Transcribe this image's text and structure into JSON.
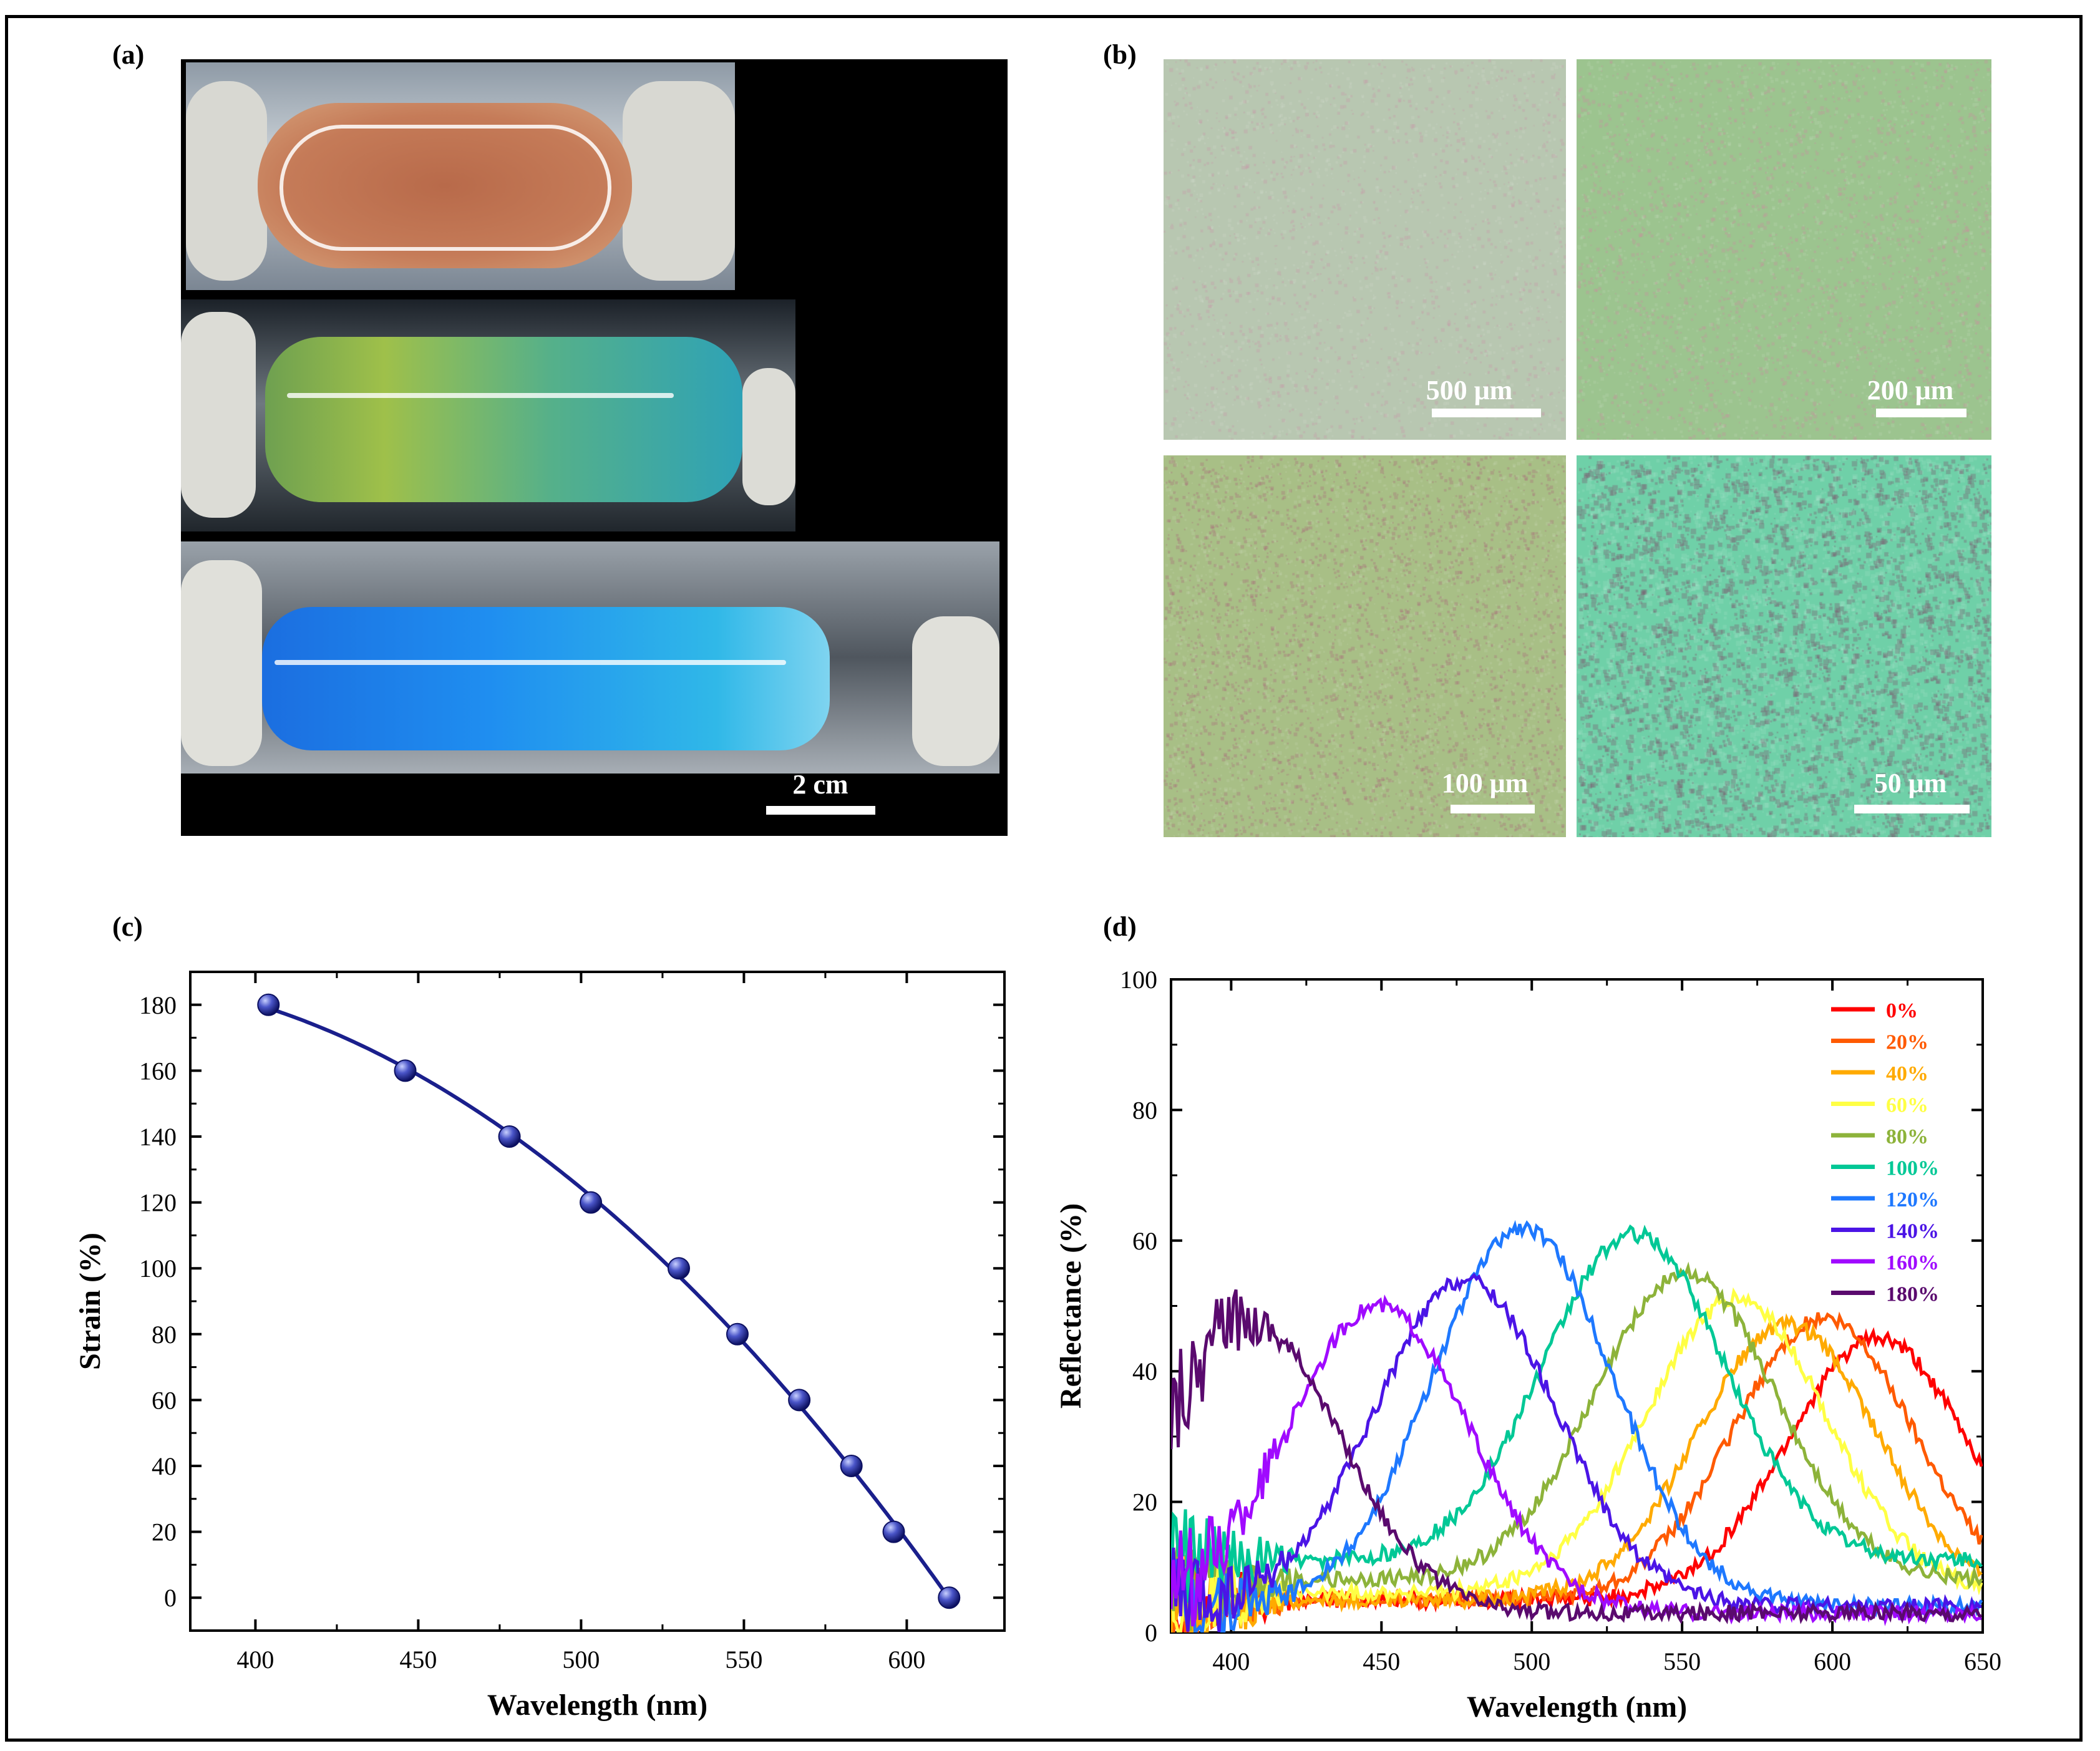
{
  "panels": {
    "a": {
      "label": "(a)",
      "scale_label": "2 cm"
    },
    "b": {
      "label": "(b)",
      "tiles": [
        {
          "scale_label": "500 μm",
          "color": "#b8c7b1"
        },
        {
          "scale_label": "200 μm",
          "color": "#9cc48f"
        },
        {
          "scale_label": "100 μm",
          "color": "#a8bf86"
        },
        {
          "scale_label": "50 μm",
          "color": "#6fd0a8"
        }
      ]
    },
    "c": {
      "label": "(c)"
    },
    "d": {
      "label": "(d)"
    }
  },
  "chart_data": [
    {
      "id": "c",
      "type": "scatter",
      "title": "",
      "xlabel": "Wavelength (nm)",
      "ylabel": "Strain (%)",
      "xlim": [
        380,
        630
      ],
      "ylim": [
        -10,
        190
      ],
      "xticks": [
        400,
        450,
        500,
        550,
        600
      ],
      "yticks": [
        0,
        20,
        40,
        60,
        80,
        100,
        120,
        140,
        160,
        180
      ],
      "x": [
        404,
        446,
        478,
        503,
        530,
        548,
        567,
        583,
        596,
        613
      ],
      "y": [
        180,
        160,
        140,
        120,
        100,
        80,
        60,
        40,
        20,
        0
      ],
      "fit_line": true,
      "color": "#1a1f8c"
    },
    {
      "id": "d",
      "type": "line",
      "title": "",
      "xlabel": "Wavelength (nm)",
      "ylabel": "Reflectance (%)",
      "xlim": [
        380,
        650
      ],
      "ylim": [
        0,
        100
      ],
      "xticks": [
        400,
        450,
        500,
        550,
        600,
        650
      ],
      "yticks": [
        0,
        20,
        40,
        60,
        80,
        100
      ],
      "legend_position": "top-right",
      "series": [
        {
          "name": "0%",
          "color": "#ff0000",
          "peak_wavelength": 615,
          "peak_reflectance": 45
        },
        {
          "name": "20%",
          "color": "#ff5a00",
          "peak_wavelength": 597,
          "peak_reflectance": 48
        },
        {
          "name": "40%",
          "color": "#ffaa00",
          "peak_wavelength": 585,
          "peak_reflectance": 47
        },
        {
          "name": "60%",
          "color": "#ffff44",
          "peak_wavelength": 568,
          "peak_reflectance": 51
        },
        {
          "name": "80%",
          "color": "#8db33a",
          "peak_wavelength": 551,
          "peak_reflectance": 55
        },
        {
          "name": "100%",
          "color": "#00c896",
          "peak_wavelength": 534,
          "peak_reflectance": 61
        },
        {
          "name": "120%",
          "color": "#1e78ff",
          "peak_wavelength": 497,
          "peak_reflectance": 62
        },
        {
          "name": "140%",
          "color": "#4b14e6",
          "peak_wavelength": 478,
          "peak_reflectance": 54
        },
        {
          "name": "160%",
          "color": "#a00aff",
          "peak_wavelength": 449,
          "peak_reflectance": 50
        },
        {
          "name": "180%",
          "color": "#5a0a6e",
          "peak_wavelength": 406,
          "peak_reflectance": 48
        }
      ]
    }
  ]
}
